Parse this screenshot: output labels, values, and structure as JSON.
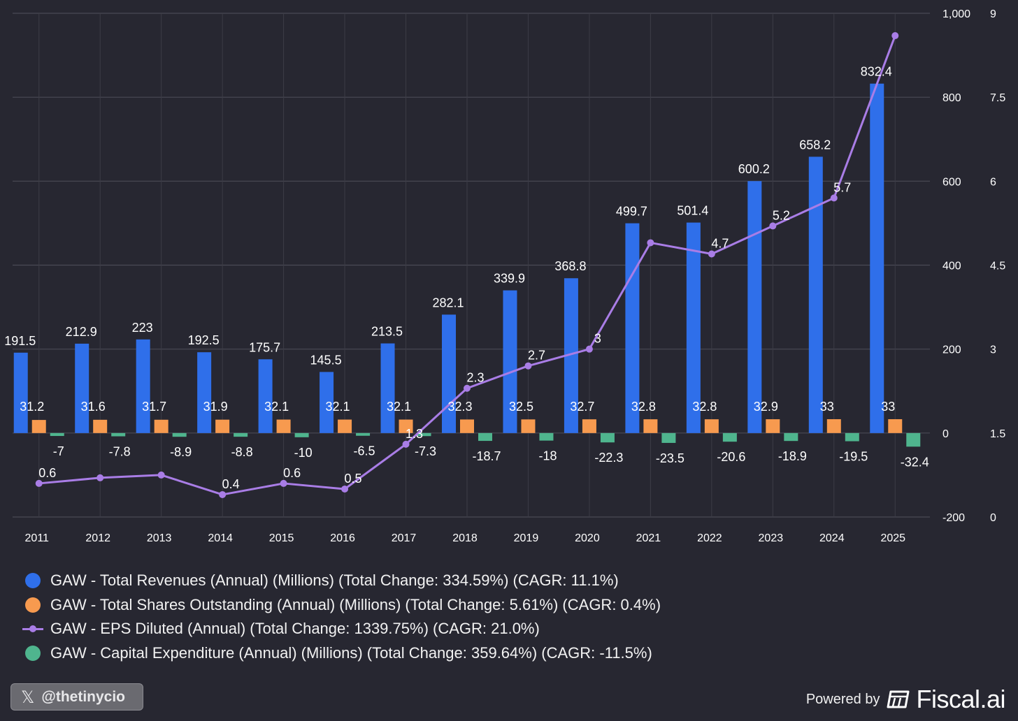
{
  "colors": {
    "revenue": "#2f6fea",
    "shares": "#f79a4f",
    "eps": "#a97de6",
    "capex": "#4fb58e",
    "grid": "#4a4a55",
    "background": "#272731"
  },
  "chart_data": {
    "type": "bar",
    "categories": [
      "2011",
      "2012",
      "2013",
      "2014",
      "2015",
      "2016",
      "2017",
      "2018",
      "2019",
      "2020",
      "2021",
      "2022",
      "2023",
      "2024",
      "2025"
    ],
    "series": [
      {
        "name": "GAW - Total Revenues (Annual) (Millions) (Total Change: 334.59%) (CAGR: 11.1%)",
        "type": "bar",
        "axis": "left",
        "values": [
          191.5,
          212.9,
          223,
          192.5,
          175.7,
          145.5,
          213.5,
          282.1,
          339.9,
          368.8,
          499.7,
          501.4,
          600.2,
          658.2,
          832.4
        ]
      },
      {
        "name": "GAW - Total Shares Outstanding (Annual) (Millions) (Total Change: 5.61%) (CAGR: 0.4%)",
        "type": "bar",
        "axis": "left",
        "values": [
          31.2,
          31.6,
          31.7,
          31.9,
          32.1,
          32.1,
          32.1,
          32.3,
          32.5,
          32.7,
          32.8,
          32.8,
          32.9,
          33,
          33
        ]
      },
      {
        "name": "GAW - EPS Diluted (Annual) (Total Change: 1339.75%) (CAGR: 21.0%)",
        "type": "line",
        "axis": "right",
        "values": [
          0.6,
          0.7,
          0.75,
          0.4,
          0.6,
          0.5,
          1.3,
          2.3,
          2.7,
          3,
          4.9,
          4.7,
          5.2,
          5.7,
          8.6
        ],
        "labels": [
          "0.6",
          "",
          "",
          "0.4",
          "0.6",
          "0.5",
          "1.3",
          "2.3",
          "2.7",
          "3",
          "",
          "4.7",
          "5.2",
          "5.7",
          ""
        ]
      },
      {
        "name": "GAW - Capital Expenditure (Annual) (Millions) (Total Change: 359.64%) (CAGR: -11.5%)",
        "type": "bar",
        "axis": "left",
        "values": [
          -7,
          -7.8,
          -8.9,
          -8.8,
          -10,
          -6.5,
          -7.3,
          -18.7,
          -18,
          -22.3,
          -23.5,
          -20.6,
          -18.9,
          -19.5,
          -32.4
        ]
      }
    ],
    "left_axis": {
      "min": -200,
      "max": 1000,
      "ticks": [
        -200,
        0,
        200,
        400,
        600,
        800,
        1000
      ],
      "tick_labels": [
        "-200",
        "0",
        "200",
        "400",
        "600",
        "800",
        "1,000"
      ]
    },
    "right_axis": {
      "min": 0,
      "max": 9,
      "ticks": [
        0,
        1.5,
        3,
        4.5,
        6,
        7.5,
        9
      ],
      "tick_labels": [
        "0",
        "1.5",
        "3",
        "4.5",
        "6",
        "7.5",
        "9"
      ]
    },
    "grid": true,
    "legend_position": "bottom-left"
  },
  "footer": {
    "handle_icon": "x-logo-icon",
    "handle": "@thetinycio",
    "powered_by": "Powered by",
    "brand_icon": "fiscal-logo-icon",
    "brand": "Fiscal.ai"
  }
}
